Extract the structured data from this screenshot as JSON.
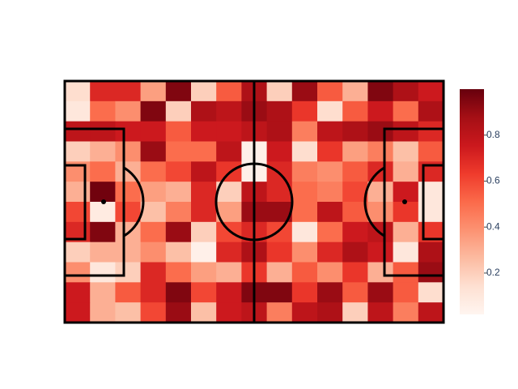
{
  "chart_data": {
    "type": "heatmap",
    "z": [
      [
        0.15,
        0.7,
        0.7,
        0.35,
        0.95,
        0.2,
        0.55,
        0.85,
        0.2,
        0.9,
        0.55,
        0.3,
        0.95,
        0.85,
        0.75
      ],
      [
        0.1,
        0.5,
        0.4,
        0.95,
        0.2,
        0.85,
        0.8,
        0.9,
        0.85,
        0.65,
        0.15,
        0.55,
        0.75,
        0.5,
        0.85
      ],
      [
        0.8,
        0.8,
        0.75,
        0.75,
        0.55,
        0.75,
        0.75,
        0.8,
        0.85,
        0.45,
        0.8,
        0.85,
        0.9,
        0.8,
        0.7
      ],
      [
        0.2,
        0.3,
        0.4,
        0.9,
        0.5,
        0.5,
        0.8,
        0.05,
        0.75,
        0.15,
        0.65,
        0.35,
        0.45,
        0.25,
        0.55
      ],
      [
        0.4,
        0.5,
        0.3,
        0.5,
        0.6,
        0.8,
        0.65,
        0.05,
        0.7,
        0.45,
        0.4,
        0.55,
        0.7,
        0.3,
        0.7
      ],
      [
        0.3,
        0.98,
        0.5,
        0.35,
        0.3,
        0.7,
        0.2,
        0.8,
        0.7,
        0.5,
        0.45,
        0.6,
        0.3,
        0.75,
        0.1
      ],
      [
        0.6,
        0.08,
        0.6,
        0.25,
        0.45,
        0.7,
        0.35,
        0.9,
        0.9,
        0.5,
        0.8,
        0.55,
        0.4,
        0.65,
        0.1
      ],
      [
        0.7,
        0.95,
        0.3,
        0.5,
        0.9,
        0.2,
        0.6,
        0.7,
        0.6,
        0.1,
        0.5,
        0.75,
        0.8,
        0.3,
        0.65
      ],
      [
        0.2,
        0.3,
        0.3,
        0.4,
        0.25,
        0.05,
        0.7,
        0.85,
        0.65,
        0.4,
        0.7,
        0.85,
        0.75,
        0.1,
        0.85
      ],
      [
        0.4,
        0.1,
        0.2,
        0.7,
        0.5,
        0.35,
        0.3,
        0.65,
        0.3,
        0.55,
        0.4,
        0.65,
        0.3,
        0.55,
        0.9
      ],
      [
        0.75,
        0.3,
        0.55,
        0.7,
        0.95,
        0.6,
        0.75,
        0.95,
        0.95,
        0.65,
        0.9,
        0.55,
        0.9,
        0.55,
        0.15
      ],
      [
        0.75,
        0.3,
        0.25,
        0.6,
        0.9,
        0.25,
        0.75,
        0.8,
        0.45,
        0.8,
        0.85,
        0.2,
        0.8,
        0.45,
        0.8
      ]
    ],
    "zlim": [
      0.02,
      1.0
    ],
    "colorbar_ticks": [
      0.2,
      0.4,
      0.6,
      0.8
    ],
    "colorscale": [
      "#fff5f0",
      "#fee0d2",
      "#fcbba1",
      "#fc9272",
      "#fb6a4a",
      "#ef3b2c",
      "#cb181d",
      "#a50f15",
      "#67000d"
    ]
  }
}
